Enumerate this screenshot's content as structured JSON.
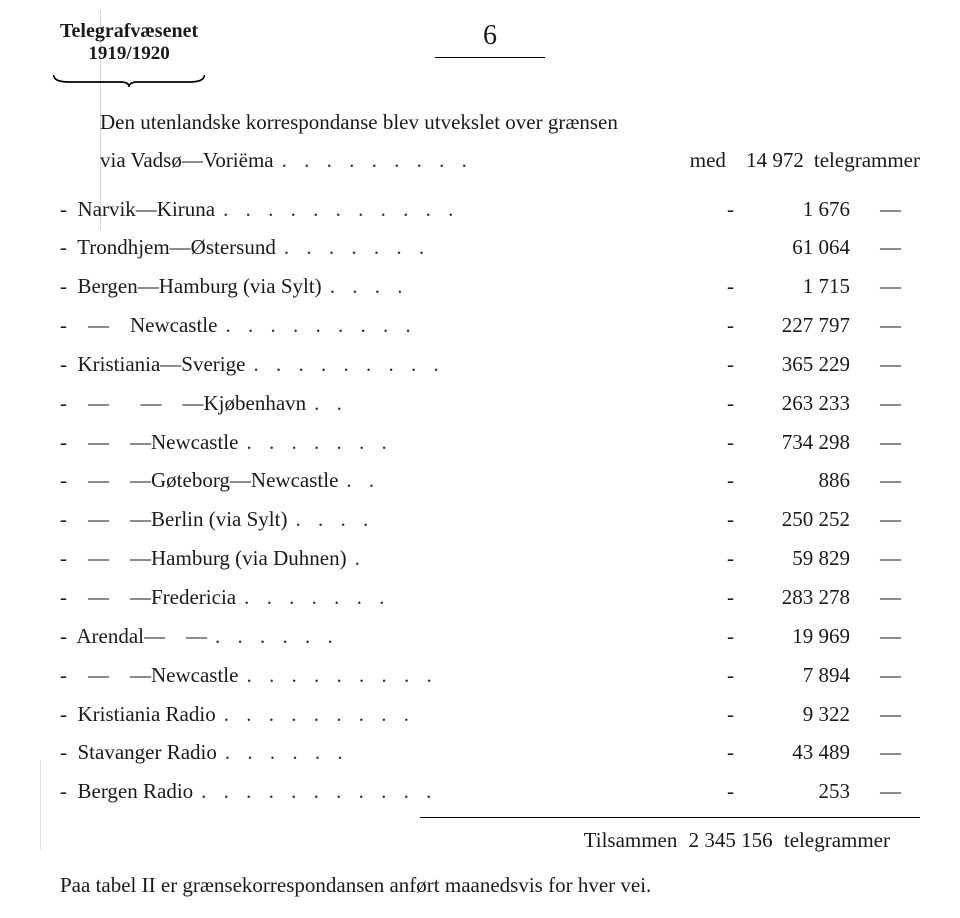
{
  "header": {
    "title": "Telegrafvæsenet",
    "years": "1919/1920",
    "page_number": "6"
  },
  "intro_line1": "Den utenlandske korrespondanse blev utvekslet over grænsen",
  "intro_line2_prefix": "via Vadsø—Voriëma",
  "intro_line2_leader": ". . . . . . . . .",
  "intro_line2_mid": "med",
  "intro_line2_value": "14 972",
  "intro_line2_suffix": "telegrammer",
  "rows": [
    {
      "route": "-  Narvik—Kiruna",
      "leader": ". . . . . . . . . . .",
      "pre": "-",
      "value": "1 676",
      "post": "—"
    },
    {
      "route": "-  Trondhjem—Østersund",
      "leader": ". . . . . . .",
      "pre": "",
      "value": "61 064",
      "post": "—"
    },
    {
      "route": "-  Bergen—Hamburg (via Sylt)",
      "leader": ". . . .",
      "pre": "-",
      "value": "1 715",
      "post": "—"
    },
    {
      "route": "-    —    Newcastle",
      "leader": ". . . . . . . . .",
      "pre": "-",
      "value": "227 797",
      "post": "—"
    },
    {
      "route": "-  Kristiania—Sverige",
      "leader": ". . . . . . . . .",
      "pre": "-",
      "value": "365 229",
      "post": "—"
    },
    {
      "route": "-    —      —    —Kjøbenhavn",
      "leader": ". .",
      "pre": "-",
      "value": "263 233",
      "post": "—"
    },
    {
      "route": "-    —    —Newcastle",
      "leader": ". . . . . . .",
      "pre": "-",
      "value": "734 298",
      "post": "—"
    },
    {
      "route": "-    —    —Gøteborg—Newcastle",
      "leader": ". .",
      "pre": "-",
      "value": "886",
      "post": "—"
    },
    {
      "route": "-    —    —Berlin (via Sylt)",
      "leader": ". . . .",
      "pre": "-",
      "value": "250 252",
      "post": "—"
    },
    {
      "route": "-    —    —Hamburg (via Duhnen)",
      "leader": ".",
      "pre": "-",
      "value": "59 829",
      "post": "—"
    },
    {
      "route": "-    —    —Fredericia",
      "leader": ". . . . . . .",
      "pre": "-",
      "value": "283 278",
      "post": "—"
    },
    {
      "route": "-  Arendal—    —",
      "leader": ". . .  . . .",
      "pre": "-",
      "value": "19 969",
      "post": "—"
    },
    {
      "route": "-    —    —Newcastle",
      "leader": ". . . . . . . . .",
      "pre": "-",
      "value": "7 894",
      "post": "—"
    },
    {
      "route": "-  Kristiania Radio",
      "leader": ". . . . . .  . . .",
      "pre": "-",
      "value": "9 322",
      "post": "—"
    },
    {
      "route": "-  Stavanger Radio",
      "leader": ". . . .  .  .",
      "pre": "-",
      "value": "43 489",
      "post": "—"
    },
    {
      "route": "-  Bergen Radio",
      "leader": ". . . . . .  . . . . .",
      "pre": "-",
      "value": "253",
      "post": "—"
    }
  ],
  "total_label": "Tilsammen",
  "total_value": "2 345 156",
  "total_suffix": "telegrammer",
  "footer": "Paa tabel II er grænsekorrespondansen anført maanedsvis for hver vei."
}
